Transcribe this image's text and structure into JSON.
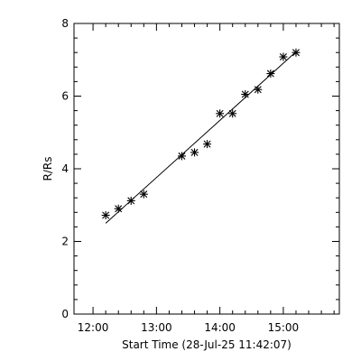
{
  "chart_data": {
    "type": "scatter",
    "xlabel": "Start Time (28-Jul-25 11:42:07)",
    "ylabel": "R/Rs",
    "x_unit": "minutes after 12:00",
    "xlim": [
      -18,
      233
    ],
    "ylim": [
      0,
      8
    ],
    "x_ticks": [
      {
        "value": 0,
        "label": "12:00"
      },
      {
        "value": 60,
        "label": "13:00"
      },
      {
        "value": 120,
        "label": "14:00"
      },
      {
        "value": 180,
        "label": "15:00"
      }
    ],
    "x_minor_ticks": [
      12,
      24,
      36,
      48,
      72,
      84,
      96,
      108,
      132,
      144,
      156,
      168,
      192,
      204,
      216,
      228
    ],
    "y_ticks": [
      {
        "value": 0,
        "label": "0"
      },
      {
        "value": 2,
        "label": "2"
      },
      {
        "value": 4,
        "label": "4"
      },
      {
        "value": 6,
        "label": "6"
      },
      {
        "value": 8,
        "label": "8"
      }
    ],
    "y_minor_ticks": [
      0.4,
      0.8,
      1.2,
      1.6,
      2.4,
      2.8,
      3.2,
      3.6,
      4.4,
      4.8,
      5.2,
      5.6,
      6.4,
      6.8,
      7.2,
      7.6
    ],
    "points": [
      {
        "x": 12,
        "y": 2.72
      },
      {
        "x": 24,
        "y": 2.9
      },
      {
        "x": 36,
        "y": 3.12
      },
      {
        "x": 48,
        "y": 3.3
      },
      {
        "x": 84,
        "y": 4.35
      },
      {
        "x": 96,
        "y": 4.45
      },
      {
        "x": 108,
        "y": 4.68
      },
      {
        "x": 120,
        "y": 5.52
      },
      {
        "x": 132,
        "y": 5.52
      },
      {
        "x": 144,
        "y": 6.05
      },
      {
        "x": 156,
        "y": 6.18
      },
      {
        "x": 168,
        "y": 6.62
      },
      {
        "x": 180,
        "y": 7.08
      },
      {
        "x": 192,
        "y": 7.2
      }
    ],
    "fit_line": {
      "x": [
        12,
        192
      ],
      "y": [
        2.5,
        7.22
      ]
    },
    "marker": "asterisk",
    "grid": false,
    "colors": {
      "foreground": "#000000",
      "background": "#ffffff"
    }
  }
}
